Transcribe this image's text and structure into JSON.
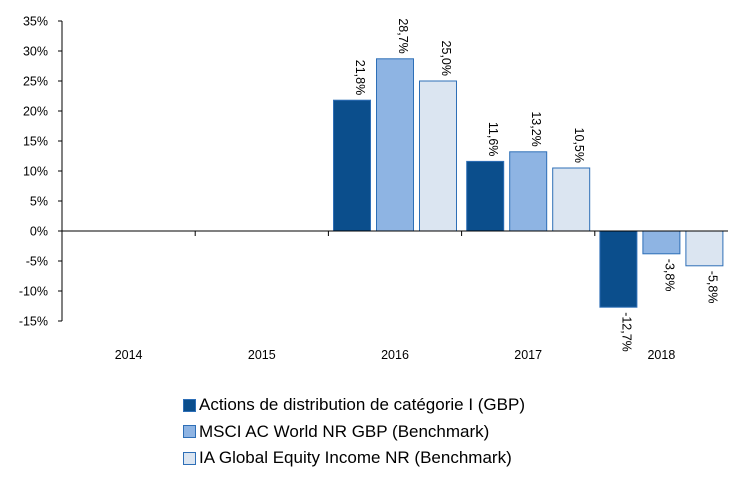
{
  "chart_data": {
    "type": "bar",
    "categories": [
      "2014",
      "2015",
      "2016",
      "2017",
      "2018"
    ],
    "series": [
      {
        "name": "Actions de distribution de catégorie I (GBP)",
        "color": "#0b4e8c",
        "values": [
          null,
          null,
          21.8,
          11.6,
          -12.7
        ],
        "labels": [
          "",
          "",
          "21,8%",
          "11,6%",
          "-12,7%"
        ]
      },
      {
        "name": "MSCI AC World NR GBP (Benchmark)",
        "color": "#8eb4e3",
        "values": [
          null,
          null,
          28.7,
          13.2,
          -3.8
        ],
        "labels": [
          "",
          "",
          "28,7%",
          "13,2%",
          "-3,8%"
        ]
      },
      {
        "name": "IA Global Equity Income NR (Benchmark)",
        "color": "#dbe5f1",
        "values": [
          null,
          null,
          25.0,
          10.5,
          -5.8
        ],
        "labels": [
          "",
          "",
          "25,0%",
          "10,5%",
          "-5,8%"
        ]
      }
    ],
    "ylim": [
      -15,
      35
    ],
    "yticks": [
      35,
      30,
      25,
      20,
      15,
      10,
      5,
      0,
      -5,
      -10,
      -15
    ],
    "ytick_labels": [
      "35%",
      "30%",
      "25%",
      "20%",
      "15%",
      "10%",
      "5%",
      "0%",
      "-5%",
      "-10%",
      "-15%"
    ],
    "bar_border_color": "#2e6fb7",
    "grid": false,
    "legend_position": "bottom"
  }
}
